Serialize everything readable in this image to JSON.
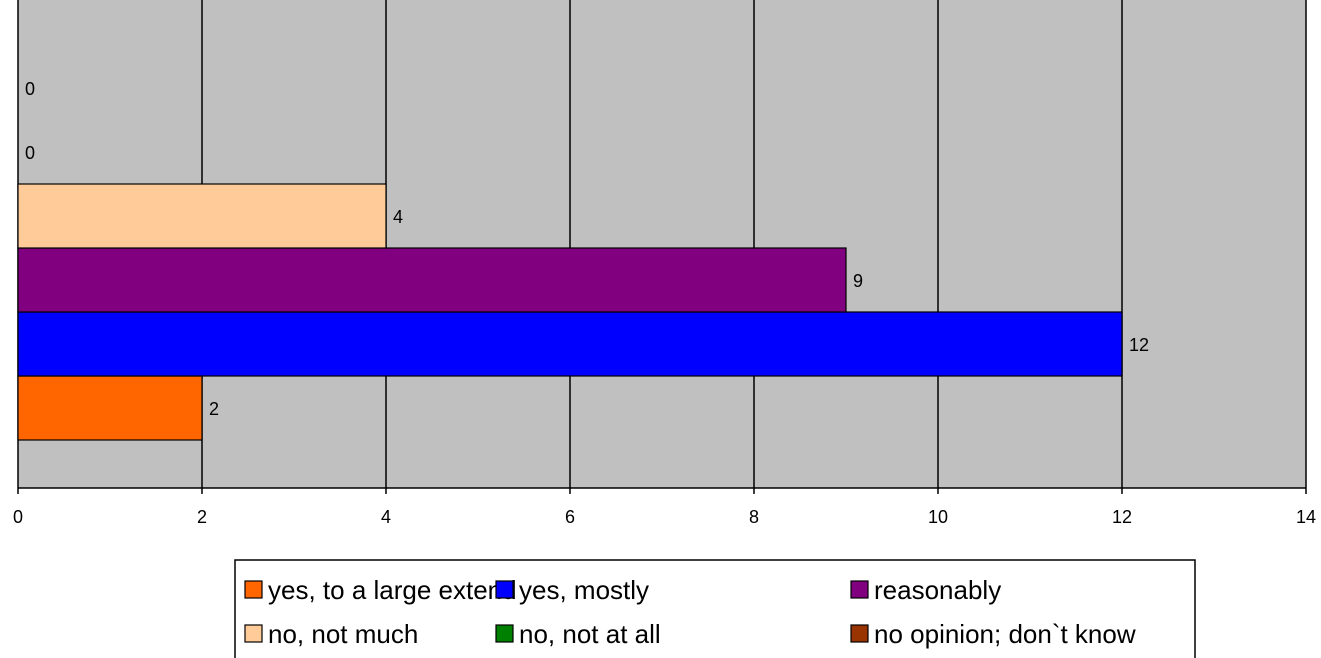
{
  "chart_data": {
    "type": "bar",
    "orientation": "horizontal",
    "series": [
      {
        "name": "yes, to a large extend",
        "value": 2,
        "color": "#FF6600"
      },
      {
        "name": "yes, mostly",
        "value": 12,
        "color": "#0000FF"
      },
      {
        "name": "reasonably",
        "value": 9,
        "color": "#800080"
      },
      {
        "name": "no, not much",
        "value": 4,
        "color": "#FFCC99"
      },
      {
        "name": "no, not at all",
        "value": 0,
        "color": "#008000"
      },
      {
        "name": "no opinion; don`t know",
        "value": 0,
        "color": "#993300"
      }
    ],
    "xlim": [
      0,
      14
    ],
    "xticks": [
      "0",
      "2",
      "4",
      "6",
      "8",
      "10",
      "12",
      "14"
    ],
    "grid": "vertical",
    "plot_background": "#C0C0C0",
    "legend_position": "bottom",
    "title": "",
    "xlabel": "",
    "ylabel": ""
  }
}
